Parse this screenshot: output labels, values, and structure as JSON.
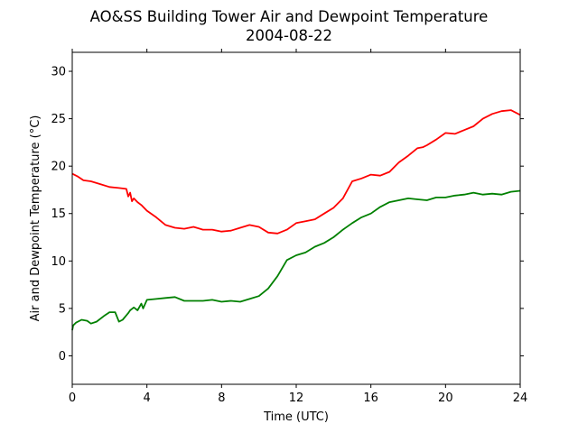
{
  "chart_data": {
    "type": "line",
    "title": "AO&SS Building Tower Air and Dewpoint Temperature",
    "subtitle": "2004-08-22",
    "xlabel": "Time (UTC)",
    "ylabel": "Air and Dewpoint Temperature (°C)",
    "xlim": [
      0,
      24
    ],
    "ylim": [
      -3,
      32
    ],
    "xticks": [
      0,
      4,
      8,
      12,
      16,
      20,
      24
    ],
    "yticks": [
      0,
      5,
      10,
      15,
      20,
      25,
      30
    ],
    "grid": false,
    "series": [
      {
        "color": "#ff0000",
        "x": [
          0,
          0.3,
          0.6,
          1.0,
          1.5,
          2.0,
          2.5,
          2.9,
          3.0,
          3.1,
          3.2,
          3.3,
          3.5,
          3.7,
          4.0,
          4.5,
          5.0,
          5.5,
          6.0,
          6.5,
          7.0,
          7.5,
          8.0,
          8.5,
          9.0,
          9.5,
          10.0,
          10.5,
          11.0,
          11.5,
          12.0,
          12.5,
          13.0,
          13.5,
          14.0,
          14.5,
          15.0,
          15.5,
          16.0,
          16.5,
          17.0,
          17.5,
          18.0,
          18.5,
          18.8,
          19.0,
          19.5,
          20.0,
          20.5,
          21.0,
          21.5,
          22.0,
          22.5,
          23.0,
          23.5,
          24.0
        ],
        "y": [
          19.2,
          18.9,
          18.5,
          18.4,
          18.1,
          17.8,
          17.7,
          17.6,
          16.8,
          17.2,
          16.3,
          16.6,
          16.2,
          15.9,
          15.3,
          14.6,
          13.8,
          13.5,
          13.4,
          13.6,
          13.3,
          13.3,
          13.1,
          13.2,
          13.5,
          13.8,
          13.6,
          13.0,
          12.9,
          13.3,
          14.0,
          14.2,
          14.4,
          15.0,
          15.6,
          16.6,
          18.4,
          18.7,
          19.1,
          19.0,
          19.4,
          20.4,
          21.1,
          21.9,
          22.0,
          22.2,
          22.8,
          23.5,
          23.4,
          23.8,
          24.2,
          25.0,
          25.5,
          25.8,
          25.9,
          25.4
        ]
      },
      {
        "color": "#008000",
        "x": [
          0,
          0.05,
          0.2,
          0.5,
          0.8,
          1.0,
          1.3,
          1.7,
          2.0,
          2.3,
          2.5,
          2.7,
          3.0,
          3.1,
          3.3,
          3.5,
          3.7,
          3.8,
          4.0,
          4.5,
          5.0,
          5.5,
          6.0,
          6.5,
          7.0,
          7.5,
          8.0,
          8.5,
          9.0,
          9.5,
          10.0,
          10.5,
          11.0,
          11.5,
          12.0,
          12.5,
          13.0,
          13.5,
          14.0,
          14.5,
          15.0,
          15.5,
          16.0,
          16.5,
          17.0,
          17.5,
          18.0,
          18.5,
          19.0,
          19.5,
          20.0,
          20.5,
          21.0,
          21.5,
          22.0,
          22.5,
          23.0,
          23.5,
          24.0
        ],
        "y": [
          2.7,
          3.2,
          3.5,
          3.8,
          3.7,
          3.4,
          3.6,
          4.2,
          4.6,
          4.6,
          3.6,
          3.8,
          4.5,
          4.8,
          5.1,
          4.8,
          5.5,
          5.0,
          5.9,
          6.0,
          6.1,
          6.2,
          5.8,
          5.8,
          5.8,
          5.9,
          5.7,
          5.8,
          5.7,
          6.0,
          6.3,
          7.1,
          8.4,
          10.1,
          10.6,
          10.9,
          11.5,
          11.9,
          12.5,
          13.3,
          14.0,
          14.6,
          15.0,
          15.7,
          16.2,
          16.4,
          16.6,
          16.5,
          16.4,
          16.7,
          16.7,
          16.9,
          17.0,
          17.2,
          17.0,
          17.1,
          17.0,
          17.3,
          17.4
        ]
      }
    ]
  }
}
